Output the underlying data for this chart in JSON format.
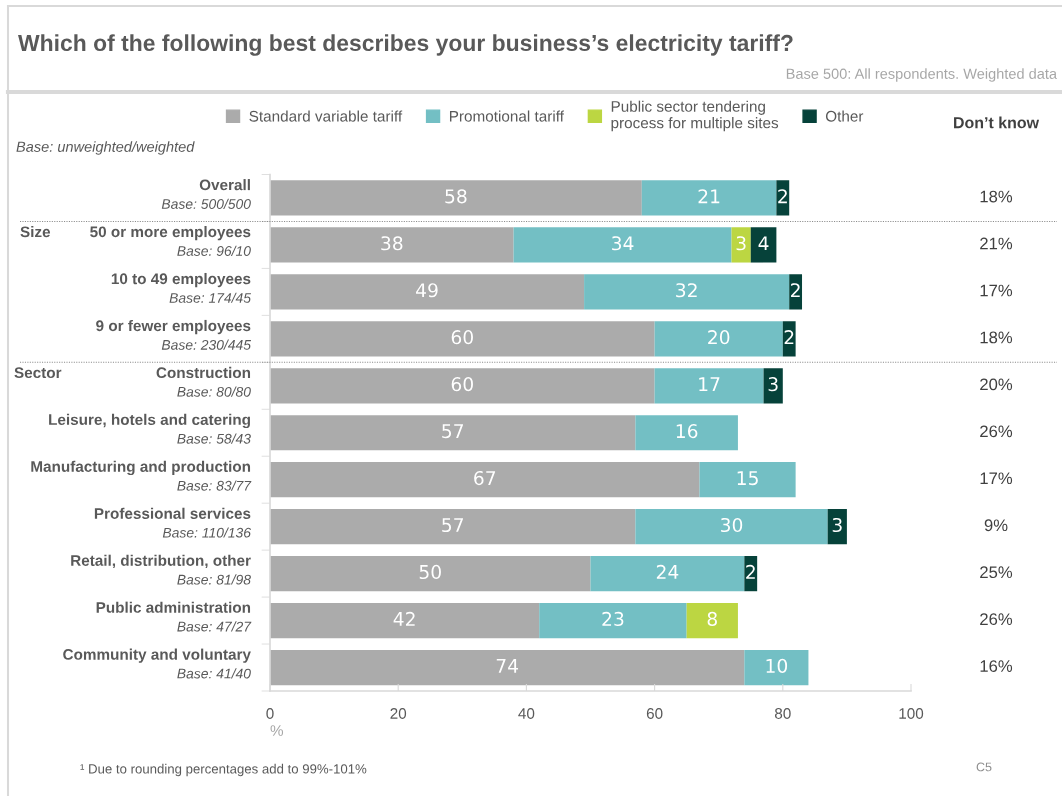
{
  "chart_data": [
    {
      "type": "bar",
      "orientation": "horizontal",
      "stacked": true,
      "title": "Which of the following best describes your business’s electricity tariff?",
      "subtitle": "Base 500: All respondents. Weighted data",
      "xlabel": "%",
      "categories": [
        "Overall\nBase: 500/500",
        "50 or more employees\nBase: 96/10",
        "10 to 49 employees\nBase: 174/45",
        "9 or fewer employees\nBase: 230/445",
        "Construction\nBase: 80/80",
        "Leisure, hotels and catering\nBase: 58/43",
        "Manufacturing and production\nBase: 83/77",
        "Professional services\nBase: 110/136",
        "Retail, distribution, other\nBase: 81/98",
        "Public administration\nBase: 47/27",
        "Community and voluntary\nBase: 41/40"
      ],
      "series": [
        {
          "name": "Standard variable tariff",
          "color": "#ababab",
          "values": [
            58,
            38,
            49,
            60,
            60,
            57,
            67,
            57,
            50,
            42,
            74
          ]
        },
        {
          "name": "Promotional tariff",
          "color": "#73bfc4",
          "values": [
            21,
            34,
            32,
            20,
            17,
            16,
            15,
            30,
            24,
            23,
            10
          ]
        },
        {
          "name": "Public sector tendering\nprocess for multiple sites",
          "color": "#bcd642",
          "values": [
            null,
            3,
            null,
            null,
            null,
            null,
            null,
            null,
            null,
            8,
            null
          ]
        },
        {
          "name": "Other",
          "color": "#06423a",
          "values": [
            2,
            4,
            2,
            2,
            3,
            null,
            null,
            3,
            2,
            null,
            null
          ]
        }
      ],
      "xlim": [
        0,
        100
      ],
      "xticks": [
        0,
        20,
        40,
        60,
        80,
        100
      ],
      "data_labels": true,
      "grid": false,
      "legend": "top",
      "annotations": [
        "Base: unweighted/weighted",
        "Size",
        "Sector",
        "¹ Due to rounding percentages add to 99%-101%",
        "C5"
      ]
    },
    {
      "type": "other",
      "title": "Don’t know",
      "annotations": [
        "18%",
        "21%",
        "17%",
        "18%",
        "20%",
        "26%",
        "17%",
        "9%",
        "25%",
        "26%",
        "16%"
      ]
    }
  ]
}
